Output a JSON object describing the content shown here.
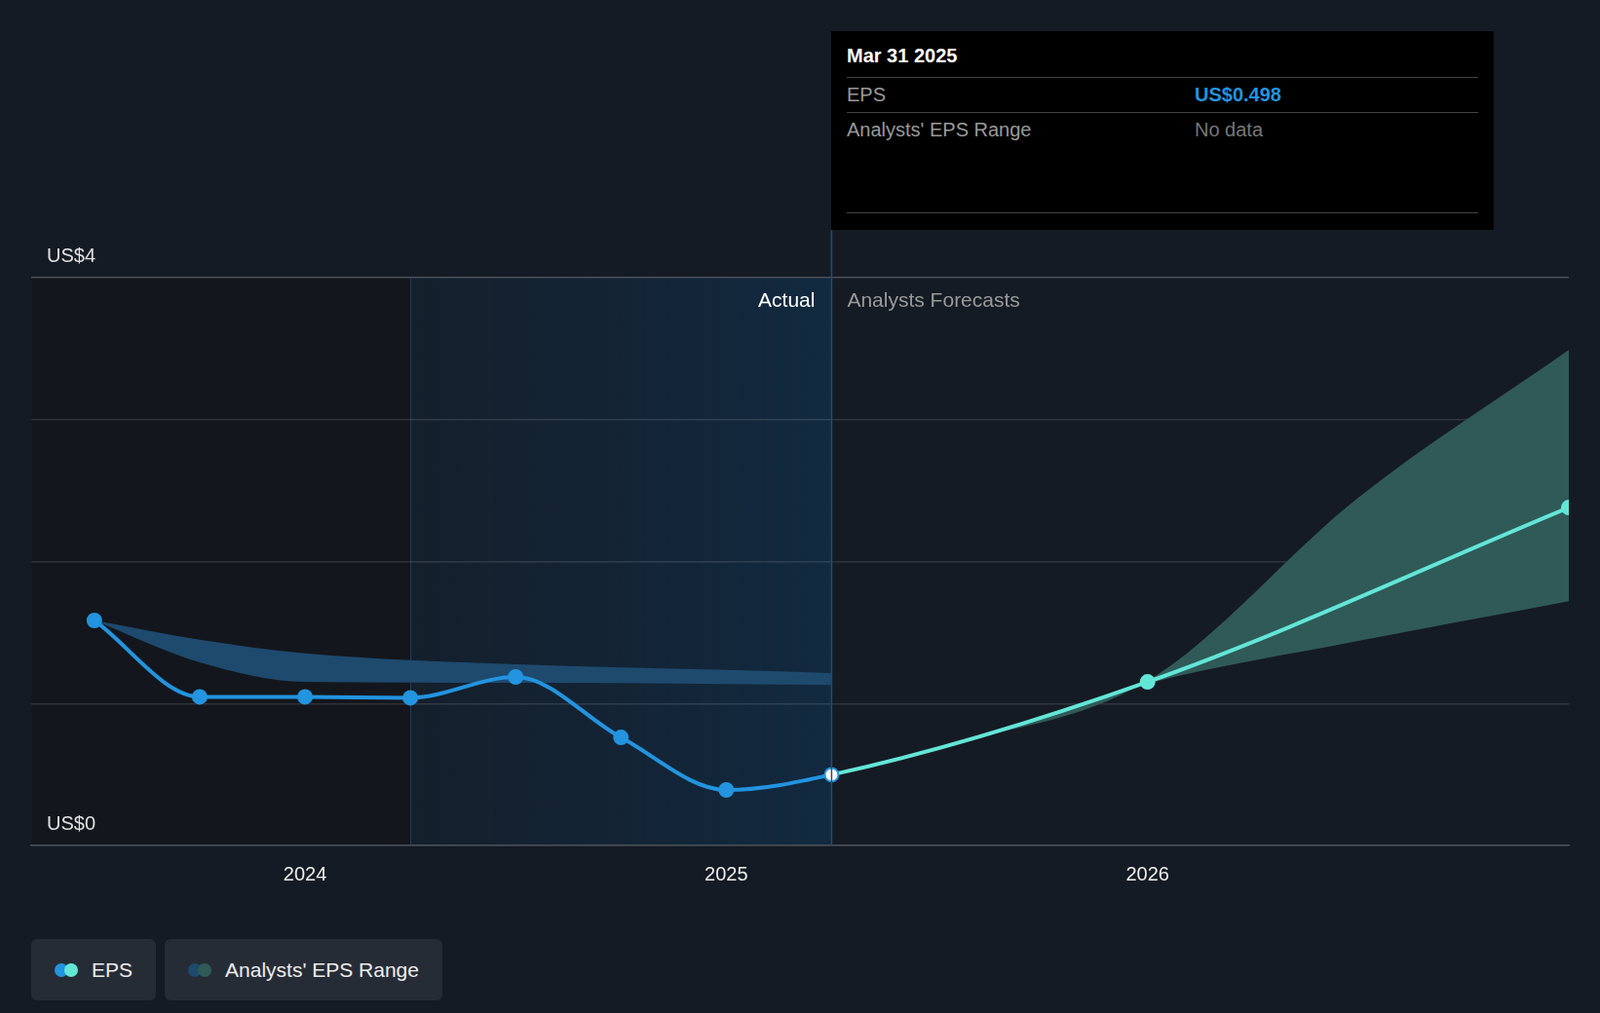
{
  "chart_data": {
    "type": "line",
    "xlim": [
      2023.35,
      2027.0
    ],
    "xticks": [
      2024,
      2025,
      2026
    ],
    "ylim": [
      0,
      4
    ],
    "yticks": [
      {
        "value": 0,
        "label": "US$0"
      },
      {
        "value": 1,
        "label": null
      },
      {
        "value": 2,
        "label": null
      },
      {
        "value": 3,
        "label": null
      },
      {
        "value": 4,
        "label": "US$4"
      }
    ],
    "grid": true,
    "regions": {
      "actual_label": "Actual",
      "forecast_label": "Analysts Forecasts",
      "highlight_start": 2024.25,
      "divider": 2025.25
    },
    "tooltip": {
      "title": "Mar 31 2025",
      "rows": [
        {
          "label": "EPS",
          "value": "US$0.498"
        },
        {
          "label": "Analysts' EPS Range",
          "value": "No data"
        }
      ]
    },
    "series": [
      {
        "name": "EPS",
        "type": "line",
        "marker": "circle",
        "colors": [
          "#2394df",
          "#63e6d6"
        ],
        "x": [
          2023.5,
          2023.75,
          2024.0,
          2024.25,
          2024.5,
          2024.75,
          2025.0,
          2025.25,
          2026.0,
          2027.0
        ],
        "values": [
          1.585,
          1.047,
          1.047,
          1.04,
          1.187,
          0.761,
          0.391,
          0.498,
          1.152,
          2.38
        ]
      },
      {
        "name": "Analysts' EPS Range",
        "type": "area",
        "colors": [
          "#1e4a6e",
          "#2f5a58"
        ],
        "x": [
          2023.5,
          2023.75,
          2024.0,
          2024.5,
          2025.0,
          2025.25,
          null,
          2025.25,
          2025.5,
          2026.0,
          2026.5,
          2027.0
        ],
        "low": [
          1.585,
          1.29,
          1.152,
          1.145,
          1.138,
          1.131,
          null,
          0.498,
          0.67,
          1.14,
          1.44,
          1.72
        ],
        "high": [
          1.585,
          1.45,
          1.354,
          1.277,
          1.236,
          1.215,
          null,
          0.498,
          0.69,
          1.16,
          2.45,
          3.49
        ]
      }
    ]
  }
}
